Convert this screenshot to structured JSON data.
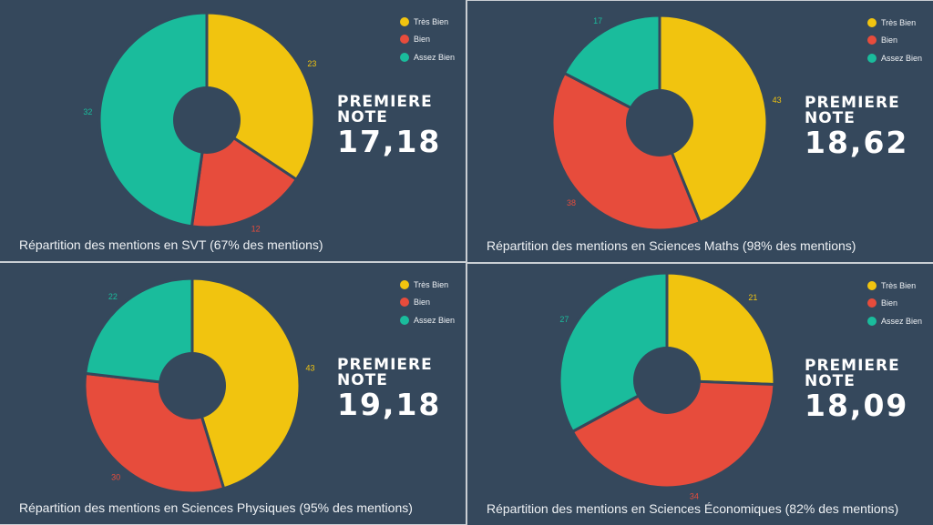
{
  "legend": [
    "Très Bien",
    "Bien",
    "Assez Bien"
  ],
  "colors": {
    "tres_bien": "#f1c40f",
    "bien": "#e74c3c",
    "assez_bien": "#1abc9c",
    "background": "#35485c"
  },
  "chart_data": [
    {
      "type": "pie",
      "donut": true,
      "title": "Répartition des mentions en SVT (67% des mentions)",
      "categories": [
        "Très Bien",
        "Bien",
        "Assez Bien"
      ],
      "values": [
        23,
        12,
        32
      ],
      "note_label_1": "PREMIERE",
      "note_label_2": "NOTE",
      "note_value": "17,18",
      "legend": "top-right"
    },
    {
      "type": "pie",
      "donut": true,
      "title": "Répartition des mentions en Sciences Maths (98% des mentions)",
      "categories": [
        "Très Bien",
        "Bien",
        "Assez Bien"
      ],
      "values": [
        43,
        38,
        17
      ],
      "note_label_1": "PREMIERE",
      "note_label_2": "NOTE",
      "note_value": "18,62",
      "legend": "top-right"
    },
    {
      "type": "pie",
      "donut": true,
      "title": "Répartition des mentions en Sciences Physiques (95% des mentions)",
      "categories": [
        "Très Bien",
        "Bien",
        "Assez Bien"
      ],
      "values": [
        43,
        30,
        22
      ],
      "note_label_1": "PREMIERE",
      "note_label_2": "NOTE",
      "note_value": "19,18",
      "legend": "top-right"
    },
    {
      "type": "pie",
      "donut": true,
      "title": "Répartition des mentions en Sciences Économiques (82% des mentions)",
      "categories": [
        "Très Bien",
        "Bien",
        "Assez Bien"
      ],
      "values": [
        21,
        34,
        27
      ],
      "note_label_1": "PREMIERE",
      "note_label_2": "NOTE",
      "note_value": "18,09",
      "legend": "top-right"
    }
  ]
}
